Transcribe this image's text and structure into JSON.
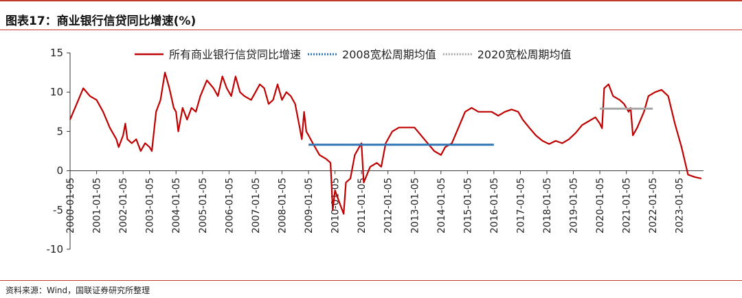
{
  "figure": {
    "title": "图表17：商业银行信贷同比增速(%)",
    "source": "资料来源：Wind，国联证券研究所整理"
  },
  "chart_data": {
    "type": "line",
    "ylim": [
      -10,
      15
    ],
    "yticks": [
      -10,
      -5,
      0,
      5,
      10,
      15
    ],
    "xlim": [
      "2000-01-05",
      "2023-12-05"
    ],
    "xticks": [
      "2000-01-05",
      "2001-01-05",
      "2002-01-05",
      "2003-01-05",
      "2004-01-05",
      "2005-01-05",
      "2006-01-05",
      "2007-01-05",
      "2008-01-05",
      "2009-01-05",
      "2010-01-05",
      "2011-01-05",
      "2012-01-05",
      "2013-01-05",
      "2014-01-05",
      "2015-01-05",
      "2016-01-05",
      "2017-01-05",
      "2018-01-05",
      "2019-01-05",
      "2020-01-05",
      "2021-01-05",
      "2022-01-05",
      "2023-01-05"
    ],
    "legend_position": "top",
    "series": [
      {
        "name": "所有商业银行信贷同比增速",
        "color": "#c00000",
        "style": "solid",
        "points": [
          [
            "2000-01-05",
            6.5
          ],
          [
            "2000-04-05",
            8.5
          ],
          [
            "2000-07-05",
            10.5
          ],
          [
            "2000-10-05",
            9.5
          ],
          [
            "2001-01-05",
            9.0
          ],
          [
            "2001-04-05",
            7.5
          ],
          [
            "2001-07-05",
            5.5
          ],
          [
            "2001-10-05",
            4.0
          ],
          [
            "2001-11-05",
            3.0
          ],
          [
            "2002-01-05",
            4.5
          ],
          [
            "2002-02-05",
            6.0
          ],
          [
            "2002-03-05",
            4.0
          ],
          [
            "2002-05-05",
            3.5
          ],
          [
            "2002-07-05",
            4.0
          ],
          [
            "2002-09-05",
            2.5
          ],
          [
            "2002-11-05",
            3.5
          ],
          [
            "2003-01-05",
            3.0
          ],
          [
            "2003-02-05",
            2.5
          ],
          [
            "2003-04-05",
            7.5
          ],
          [
            "2003-06-05",
            9.0
          ],
          [
            "2003-08-05",
            12.5
          ],
          [
            "2003-10-05",
            10.5
          ],
          [
            "2003-12-05",
            8.0
          ],
          [
            "2004-01-05",
            7.5
          ],
          [
            "2004-02-05",
            5.0
          ],
          [
            "2004-04-05",
            8.0
          ],
          [
            "2004-06-05",
            6.5
          ],
          [
            "2004-08-05",
            8.0
          ],
          [
            "2004-10-05",
            7.5
          ],
          [
            "2004-12-05",
            9.5
          ],
          [
            "2005-03-05",
            11.5
          ],
          [
            "2005-06-05",
            10.5
          ],
          [
            "2005-08-05",
            9.5
          ],
          [
            "2005-10-05",
            12.0
          ],
          [
            "2005-12-05",
            10.5
          ],
          [
            "2006-02-05",
            9.5
          ],
          [
            "2006-04-05",
            12.0
          ],
          [
            "2006-06-05",
            10.0
          ],
          [
            "2006-08-05",
            9.5
          ],
          [
            "2006-11-05",
            9.0
          ],
          [
            "2007-01-05",
            10.0
          ],
          [
            "2007-03-05",
            11.0
          ],
          [
            "2007-05-05",
            10.5
          ],
          [
            "2007-07-05",
            8.5
          ],
          [
            "2007-09-05",
            9.0
          ],
          [
            "2007-11-05",
            11.0
          ],
          [
            "2008-01-05",
            9.0
          ],
          [
            "2008-03-05",
            10.0
          ],
          [
            "2008-05-05",
            9.5
          ],
          [
            "2008-07-05",
            8.5
          ],
          [
            "2008-09-05",
            5.5
          ],
          [
            "2008-10-05",
            4.0
          ],
          [
            "2008-11-05",
            7.5
          ],
          [
            "2008-12-05",
            5.0
          ],
          [
            "2009-01-05",
            4.5
          ],
          [
            "2009-03-05",
            3.5
          ],
          [
            "2009-06-05",
            2.0
          ],
          [
            "2009-09-05",
            1.5
          ],
          [
            "2009-11-05",
            1.0
          ],
          [
            "2009-12-05",
            -5.0
          ],
          [
            "2010-01-05",
            -2.5
          ],
          [
            "2010-03-05",
            -4.0
          ],
          [
            "2010-05-05",
            -5.5
          ],
          [
            "2010-06-05",
            -1.5
          ],
          [
            "2010-08-05",
            -1.0
          ],
          [
            "2010-10-05",
            2.0
          ],
          [
            "2010-12-05",
            3.0
          ],
          [
            "2011-01-05",
            3.5
          ],
          [
            "2011-02-05",
            -1.5
          ],
          [
            "2011-05-05",
            0.5
          ],
          [
            "2011-08-05",
            1.0
          ],
          [
            "2011-10-05",
            0.5
          ],
          [
            "2011-12-05",
            3.5
          ],
          [
            "2012-03-05",
            5.0
          ],
          [
            "2012-06-05",
            5.5
          ],
          [
            "2012-10-05",
            5.5
          ],
          [
            "2013-01-05",
            5.5
          ],
          [
            "2013-04-05",
            4.5
          ],
          [
            "2013-07-05",
            3.5
          ],
          [
            "2013-10-05",
            2.5
          ],
          [
            "2014-01-05",
            2.0
          ],
          [
            "2014-03-05",
            3.0
          ],
          [
            "2014-06-05",
            3.5
          ],
          [
            "2014-09-05",
            5.5
          ],
          [
            "2014-12-05",
            7.5
          ],
          [
            "2015-03-05",
            8.0
          ],
          [
            "2015-06-05",
            7.5
          ],
          [
            "2015-09-05",
            7.5
          ],
          [
            "2015-12-05",
            7.5
          ],
          [
            "2016-03-05",
            7.0
          ],
          [
            "2016-06-05",
            7.5
          ],
          [
            "2016-09-05",
            7.8
          ],
          [
            "2016-12-05",
            7.5
          ],
          [
            "2017-02-05",
            6.5
          ],
          [
            "2017-05-05",
            5.5
          ],
          [
            "2017-08-05",
            4.5
          ],
          [
            "2017-11-05",
            3.8
          ],
          [
            "2018-02-05",
            3.4
          ],
          [
            "2018-05-05",
            3.8
          ],
          [
            "2018-08-05",
            3.5
          ],
          [
            "2018-11-05",
            4.0
          ],
          [
            "2019-02-05",
            4.8
          ],
          [
            "2019-05-05",
            5.8
          ],
          [
            "2019-08-05",
            6.3
          ],
          [
            "2019-11-05",
            6.8
          ],
          [
            "2020-01-05",
            6.0
          ],
          [
            "2020-02-05",
            5.4
          ],
          [
            "2020-03-05",
            10.5
          ],
          [
            "2020-05-05",
            11.0
          ],
          [
            "2020-07-05",
            9.5
          ],
          [
            "2020-10-05",
            9.0
          ],
          [
            "2020-12-05",
            8.5
          ],
          [
            "2021-02-05",
            7.5
          ],
          [
            "2021-03-05",
            8.0
          ],
          [
            "2021-04-05",
            4.5
          ],
          [
            "2021-06-05",
            5.5
          ],
          [
            "2021-09-05",
            7.5
          ],
          [
            "2021-11-05",
            9.5
          ],
          [
            "2022-02-05",
            10.0
          ],
          [
            "2022-05-05",
            10.3
          ],
          [
            "2022-08-05",
            9.5
          ],
          [
            "2022-11-05",
            6.0
          ],
          [
            "2023-02-05",
            3.0
          ],
          [
            "2023-05-05",
            -0.5
          ],
          [
            "2023-08-05",
            -0.8
          ],
          [
            "2023-11-05",
            -1.0
          ]
        ]
      },
      {
        "name": "2008宽松周期均值",
        "color": "#2e75b6",
        "style": "dotted",
        "points": [
          [
            "2009-01-05",
            3.3
          ],
          [
            "2016-01-05",
            3.3
          ]
        ]
      },
      {
        "name": "2020宽松周期均值",
        "color": "#a6a6a6",
        "style": "dotted",
        "points": [
          [
            "2020-01-05",
            7.9
          ],
          [
            "2022-01-05",
            7.9
          ]
        ]
      }
    ]
  }
}
